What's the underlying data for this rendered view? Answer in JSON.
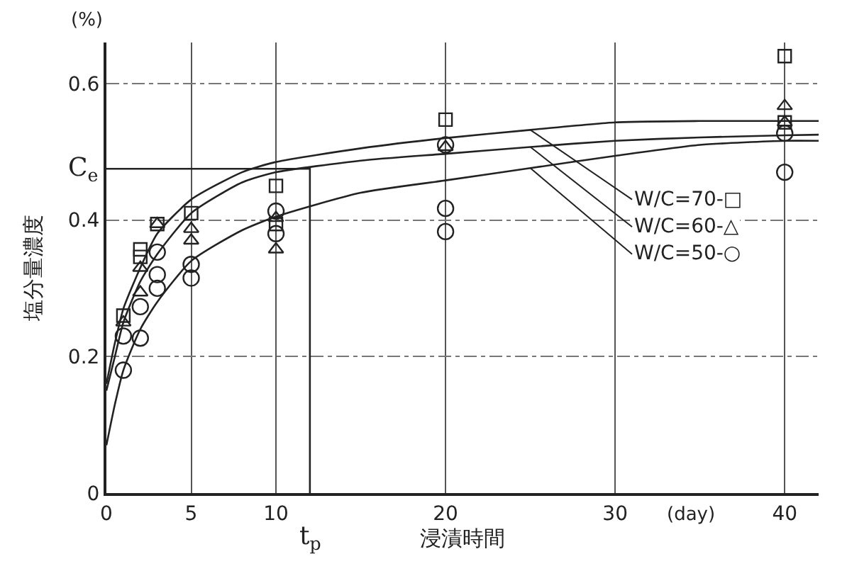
{
  "chart_data": {
    "type": "scatter",
    "xlabel": "浸漬時間",
    "ylabel": "塩分量濃度",
    "xlim": [
      0,
      42
    ],
    "ylim": [
      0,
      0.66
    ],
    "xticks": [
      0,
      5,
      10,
      20,
      30,
      40
    ],
    "yticks": [
      0,
      {
        "value": 0.2,
        "label": "0.2"
      },
      {
        "value": 0.4,
        "label": "0.4"
      },
      {
        "value": 0.6,
        "label": "0.6"
      }
    ],
    "grid": true,
    "annotations": [
      "(%)",
      "(day)",
      {
        "text": "C$_{e}$",
        "x": 0,
        "y": 0.475
      },
      {
        "text": "t$_{p}$",
        "x": 12,
        "y": 0
      },
      {
        "text": "W/C=70-□",
        "x": 25,
        "y": 0.532
      },
      {
        "text": "W/C=60-△",
        "x": 25,
        "y": 0.507
      },
      {
        "text": "W/C=50-○",
        "x": 25,
        "y": 0.476
      }
    ],
    "series": [
      {
        "marker": "square",
        "color": "#222222",
        "x": [
          1,
          2,
          2,
          3,
          5,
          10,
          10,
          20,
          40,
          40
        ],
        "values": [
          0.26,
          0.357,
          0.346,
          0.394,
          0.41,
          0.45,
          0.394,
          0.547,
          0.64,
          0.543
        ]
      },
      {
        "marker": "triangle",
        "color": "#222222",
        "x": [
          1,
          2,
          2,
          3,
          5,
          5,
          10,
          10,
          20,
          40,
          40
        ],
        "values": [
          0.25,
          0.33,
          0.294,
          0.394,
          0.387,
          0.37,
          0.403,
          0.357,
          0.507,
          0.567,
          0.543
        ]
      },
      {
        "marker": "circle",
        "color": "#222222",
        "x": [
          1,
          1,
          2,
          2,
          3,
          3,
          3,
          5,
          5,
          10,
          10,
          20,
          20,
          20,
          40,
          40
        ],
        "values": [
          0.23,
          0.18,
          0.273,
          0.227,
          0.353,
          0.32,
          0.3,
          0.335,
          0.315,
          0.413,
          0.38,
          0.51,
          0.417,
          0.383,
          0.527,
          0.47
        ]
      },
      {
        "type": "line",
        "color": "#222222",
        "x": [
          0,
          0.5,
          1,
          2,
          3,
          5,
          8,
          10,
          15,
          20,
          25,
          30,
          35,
          40,
          42
        ],
        "values": [
          0.16,
          0.22,
          0.27,
          0.33,
          0.38,
          0.43,
          0.47,
          0.485,
          0.505,
          0.52,
          0.532,
          0.543,
          0.545,
          0.545,
          0.545
        ]
      },
      {
        "type": "line",
        "color": "#222222",
        "x": [
          0,
          0.5,
          1,
          2,
          3,
          5,
          8,
          10,
          15,
          20,
          25,
          30,
          35,
          40,
          42
        ],
        "values": [
          0.15,
          0.2,
          0.25,
          0.31,
          0.35,
          0.41,
          0.455,
          0.47,
          0.487,
          0.497,
          0.507,
          0.516,
          0.521,
          0.524,
          0.525
        ]
      },
      {
        "type": "line",
        "color": "#222222",
        "x": [
          0,
          0.5,
          1,
          2,
          3,
          5,
          8,
          10,
          15,
          20,
          25,
          30,
          35,
          40,
          42
        ],
        "values": [
          0.07,
          0.13,
          0.18,
          0.24,
          0.28,
          0.34,
          0.385,
          0.405,
          0.44,
          0.458,
          0.476,
          0.494,
          0.51,
          0.516,
          0.516
        ]
      },
      {
        "type": "line",
        "color": "#222222",
        "x": [
          0,
          12,
          12
        ],
        "values": [
          0.475,
          0.475,
          0
        ]
      }
    ]
  }
}
